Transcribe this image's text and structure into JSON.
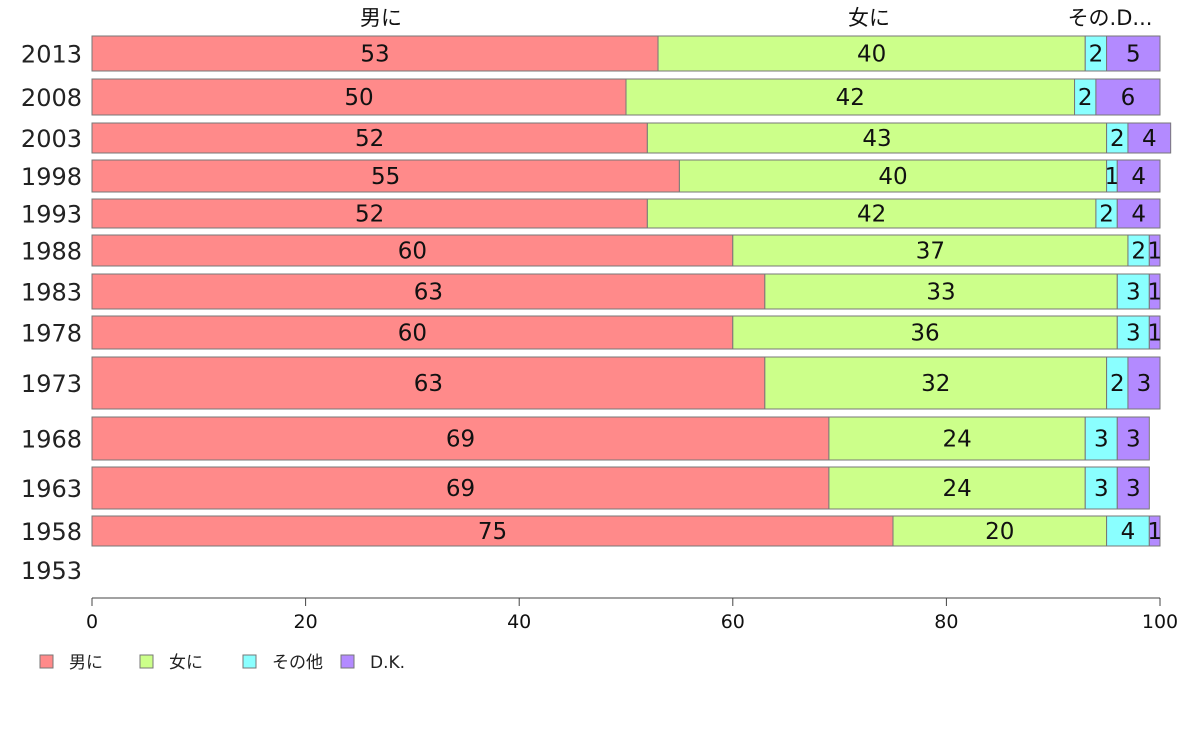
{
  "chart_data": {
    "type": "bar",
    "orientation": "horizontal",
    "stacked": true,
    "categories": [
      "2013",
      "2008",
      "2003",
      "1998",
      "1993",
      "1988",
      "1983",
      "1978",
      "1973",
      "1968",
      "1963",
      "1958",
      "1953"
    ],
    "series": [
      {
        "name": "男に",
        "color": "#ff8a8a",
        "values": [
          53,
          50,
          52,
          55,
          52,
          60,
          63,
          60,
          63,
          69,
          69,
          75,
          null
        ]
      },
      {
        "name": "女に",
        "color": "#ccff8a",
        "values": [
          40,
          42,
          43,
          40,
          42,
          37,
          33,
          36,
          32,
          24,
          24,
          20,
          null
        ]
      },
      {
        "name": "その他",
        "color": "#8affff",
        "values": [
          2,
          2,
          2,
          1,
          2,
          2,
          3,
          3,
          2,
          3,
          3,
          4,
          null
        ]
      },
      {
        "name": "D.K.",
        "color": "#b38aff",
        "values": [
          5,
          6,
          4,
          4,
          4,
          1,
          1,
          1,
          3,
          3,
          3,
          1,
          null
        ]
      }
    ],
    "column_headers": [
      "男に",
      "女に",
      "その.D..."
    ],
    "xlim": [
      0,
      100
    ],
    "xticks": [
      0,
      20,
      40,
      60,
      80,
      100
    ],
    "legend": "bottom-left",
    "grid": false
  }
}
